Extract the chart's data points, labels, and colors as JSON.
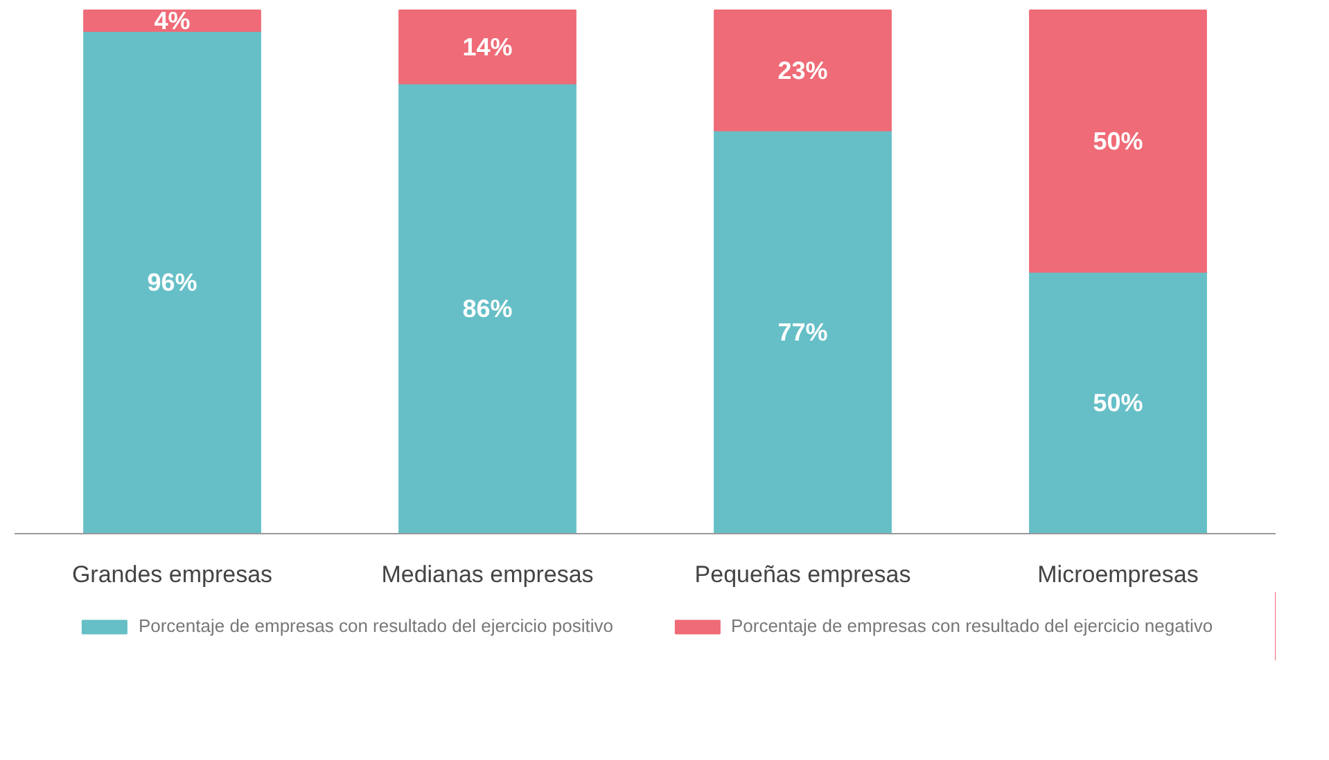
{
  "chart_data": {
    "type": "bar",
    "stacked": true,
    "categories": [
      "Grandes empresas",
      "Medianas empresas",
      "Pequeñas empresas",
      "Microempresas"
    ],
    "series": [
      {
        "name": "Porcentaje de empresas con resultado del ejercicio positivo",
        "color": "#66bfc7",
        "values": [
          96,
          86,
          77,
          50
        ],
        "value_labels": [
          "96%",
          "86%",
          "77%",
          "50%"
        ]
      },
      {
        "name": "Porcentaje de empresas con resultado del ejercicio negativo",
        "color": "#ef6b77",
        "values": [
          4,
          14,
          23,
          50
        ],
        "value_labels": [
          "4%",
          "14%",
          "23%",
          "50%"
        ]
      }
    ],
    "legend": "bottom"
  }
}
